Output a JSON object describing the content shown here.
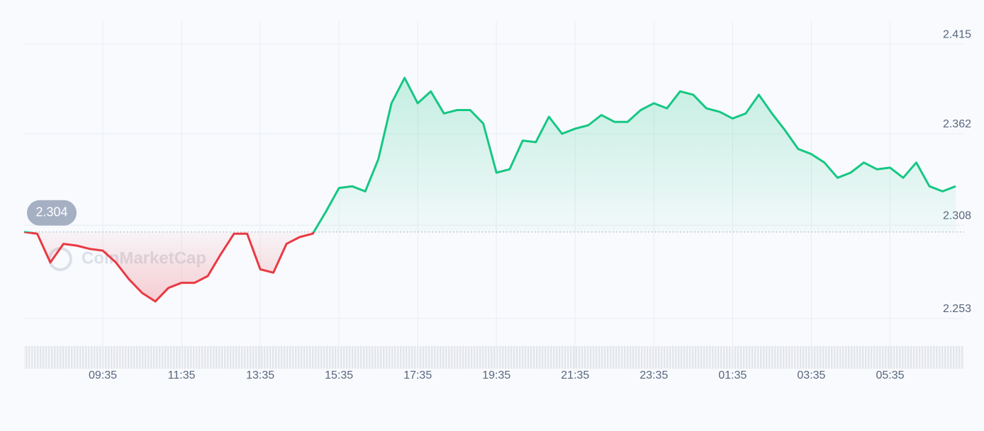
{
  "chart_data": {
    "type": "line",
    "watermark": "CoinMarketCap",
    "categories": [
      null,
      null,
      null,
      null,
      null,
      null,
      "09:35",
      null,
      null,
      null,
      null,
      null,
      "11:35",
      null,
      null,
      null,
      null,
      null,
      "13:35",
      null,
      null,
      null,
      null,
      null,
      "15:35",
      null,
      null,
      null,
      null,
      null,
      "17:35",
      null,
      null,
      null,
      null,
      null,
      "19:35",
      null,
      null,
      null,
      null,
      null,
      "21:35",
      null,
      null,
      null,
      null,
      null,
      "23:35",
      null,
      null,
      null,
      null,
      null,
      "01:35",
      null,
      null,
      null,
      null,
      null,
      "03:35",
      null,
      null,
      null,
      null,
      null,
      "05:35",
      null,
      null,
      null,
      null,
      null
    ],
    "values": [
      2.304,
      2.303,
      2.286,
      2.297,
      2.296,
      2.294,
      2.293,
      2.286,
      2.276,
      2.268,
      2.263,
      2.271,
      2.274,
      2.274,
      2.278,
      2.291,
      2.303,
      2.303,
      2.282,
      2.28,
      2.297,
      2.301,
      2.303,
      2.316,
      2.33,
      2.331,
      2.328,
      2.347,
      2.38,
      2.395,
      2.38,
      2.387,
      2.374,
      2.376,
      2.376,
      2.368,
      2.339,
      2.341,
      2.358,
      2.357,
      2.372,
      2.362,
      2.365,
      2.367,
      2.373,
      2.369,
      2.369,
      2.376,
      2.38,
      2.377,
      2.387,
      2.385,
      2.377,
      2.375,
      2.371,
      2.374,
      2.385,
      2.374,
      2.364,
      2.353,
      2.35,
      2.345,
      2.336,
      2.339,
      2.345,
      2.341,
      2.342,
      2.336,
      2.345,
      2.331,
      2.328,
      2.331
    ],
    "reference_value": 2.304,
    "color_up": "#16c784",
    "color_down": "#ea3943",
    "ylim": [
      2.24,
      2.428
    ],
    "yticks": [
      2.415,
      2.362,
      2.308,
      2.253
    ],
    "grid": true
  }
}
